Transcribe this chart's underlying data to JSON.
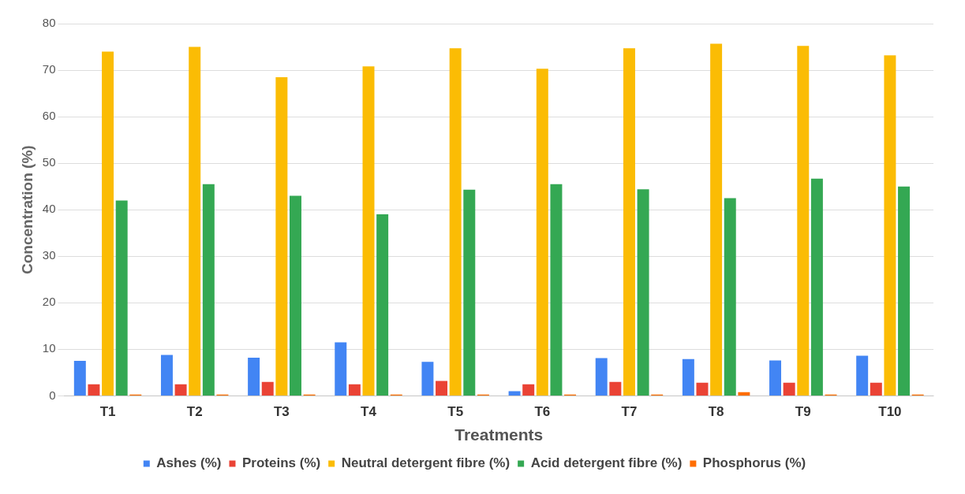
{
  "chart_data": {
    "type": "bar",
    "xlabel": "Treatments",
    "ylabel": "Concentration (%)",
    "categories": [
      "T1",
      "T2",
      "T3",
      "T4",
      "T5",
      "T6",
      "T7",
      "T8",
      "T9",
      "T10"
    ],
    "series": [
      {
        "name": "Ashes (%)",
        "color": "#4285f4",
        "values": [
          7.5,
          8.8,
          8.2,
          11.5,
          7.3,
          1,
          8.1,
          7.9,
          7.6,
          8.6
        ]
      },
      {
        "name": "Proteins (%)",
        "color": "#ea4335",
        "values": [
          2.5,
          2.5,
          3,
          2.5,
          3.2,
          2.5,
          3,
          2.8,
          2.8,
          2.8
        ]
      },
      {
        "name": "Neutral detergent fibre (%)",
        "color": "#fbbc04",
        "values": [
          74,
          75,
          68.5,
          70.8,
          74.7,
          70.3,
          74.7,
          75.7,
          75.2,
          73.2
        ]
      },
      {
        "name": "Acid detergent fibre (%)",
        "color": "#34a853",
        "values": [
          42,
          45.5,
          43,
          39,
          44.3,
          45.5,
          44.4,
          42.5,
          46.7,
          45
        ]
      },
      {
        "name": "Phosphorus (%)",
        "color": "#ff6d01",
        "values": [
          0.3,
          0.3,
          0.3,
          0.3,
          0.3,
          0.3,
          0.3,
          0.8,
          0.3,
          0.3
        ]
      }
    ],
    "ylim": [
      0,
      80
    ],
    "yticks": [
      0,
      10,
      20,
      30,
      40,
      50,
      60,
      70,
      80
    ],
    "grid": "y",
    "legend": "bottom"
  }
}
